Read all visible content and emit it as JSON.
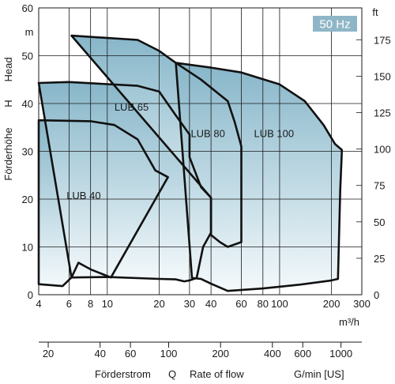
{
  "chart_data": {
    "type": "area",
    "badge": "50 Hz",
    "x_scale": "log",
    "x_unit": "m³/h",
    "x_ticks": [
      4,
      6,
      8,
      10,
      20,
      30,
      40,
      60,
      80,
      100,
      200,
      300
    ],
    "x_tick_labels": [
      "4",
      "6",
      "8",
      "10",
      "20",
      "30",
      "40",
      "60",
      "80",
      "100",
      "200",
      "300"
    ],
    "y_left_unit": "m",
    "y_left_ticks": [
      0,
      10,
      20,
      30,
      40,
      50,
      60
    ],
    "y_left_title": "Förderhöhe H Head",
    "y_left_title_parts": [
      "Förderhöhe",
      "H",
      "Head"
    ],
    "y_right_unit": "ft",
    "y_right_ticks": [
      0,
      25,
      50,
      75,
      100,
      125,
      150,
      175
    ],
    "secondary_x_unit": "G/min [US]",
    "secondary_x_ticks": [
      20,
      40,
      60,
      100,
      200,
      400,
      600,
      1000
    ],
    "secondary_x_tick_labels": [
      "20",
      "40",
      "60",
      "100",
      "200",
      "400",
      "600",
      "1000"
    ],
    "footer_labels": [
      "Förderstrom",
      "Q",
      "Rate of flow",
      "G/min [US]"
    ],
    "grid": true,
    "xlim": [
      4,
      300
    ],
    "ylim": [
      0,
      60
    ],
    "series": [
      {
        "name": "LUB 40",
        "label_at": {
          "x": 5.8,
          "y": 20
        },
        "points": [
          [
            4,
            36.5
          ],
          [
            8,
            36.3
          ],
          [
            11,
            35.5
          ],
          [
            15,
            32.5
          ],
          [
            19,
            26
          ],
          [
            22.5,
            24.6
          ],
          [
            10.5,
            3.6
          ],
          [
            8,
            5.3
          ],
          [
            6.8,
            6.7
          ],
          [
            6.2,
            3.6
          ],
          [
            5.5,
            1.8
          ],
          [
            4,
            2.2
          ]
        ]
      },
      {
        "name": "LUB 65",
        "label_at": {
          "x": 11,
          "y": 38.5
        },
        "points": [
          [
            4,
            44.3
          ],
          [
            6,
            44.5
          ],
          [
            15,
            43.7
          ],
          [
            20,
            42.5
          ],
          [
            25,
            37.5
          ],
          [
            30,
            33.5
          ],
          [
            30,
            28.8
          ],
          [
            35,
            22.5
          ],
          [
            40,
            20.3
          ],
          [
            40,
            13
          ],
          [
            36,
            10
          ],
          [
            33,
            3.5
          ],
          [
            30,
            3
          ],
          [
            28,
            2.8
          ],
          [
            25,
            3.2
          ],
          [
            20,
            3.3
          ],
          [
            10,
            3.7
          ],
          [
            6.2,
            3.6
          ]
        ]
      },
      {
        "name": "LUB 80",
        "label_at": {
          "x": 30.5,
          "y": 33
        },
        "points": [
          [
            6.2,
            54.2
          ],
          [
            15,
            53.3
          ],
          [
            20,
            51
          ],
          [
            25,
            48.5
          ],
          [
            35,
            45
          ],
          [
            50,
            40.5
          ],
          [
            55,
            36
          ],
          [
            60,
            31
          ],
          [
            60,
            11
          ],
          [
            50,
            10
          ],
          [
            45,
            11
          ],
          [
            40,
            12.5
          ],
          [
            40,
            20.3
          ]
        ]
      },
      {
        "name": "LUB 100",
        "label_at": {
          "x": 71,
          "y": 33
        },
        "points": [
          [
            25,
            48.5
          ],
          [
            40,
            47.5
          ],
          [
            60,
            46.5
          ],
          [
            100,
            44
          ],
          [
            140,
            40.5
          ],
          [
            180,
            35.5
          ],
          [
            210,
            31.5
          ],
          [
            230,
            30.3
          ],
          [
            225,
            22
          ],
          [
            218,
            3.3
          ],
          [
            200,
            3
          ],
          [
            130,
            2.1
          ],
          [
            80,
            1.3
          ],
          [
            50,
            0.8
          ],
          [
            40,
            2.3
          ],
          [
            35,
            3.3
          ],
          [
            31,
            3.5
          ]
        ]
      }
    ]
  }
}
